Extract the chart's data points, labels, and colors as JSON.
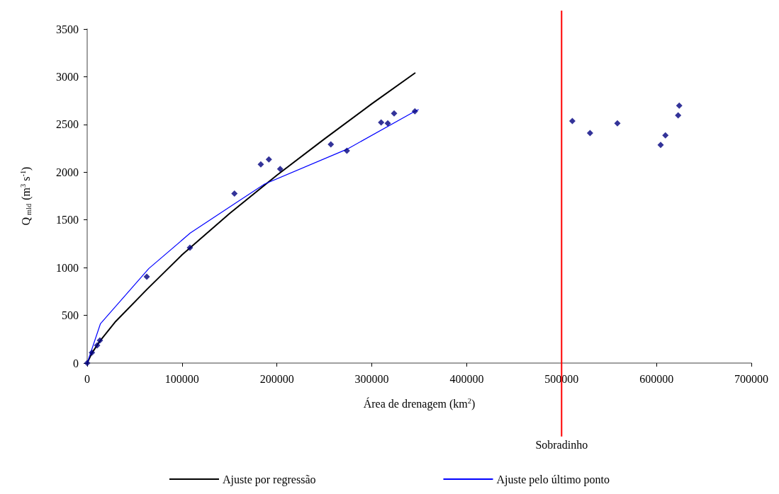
{
  "chart_data": {
    "type": "scatter",
    "xlabel": "Área de drenagem (km$^{2}$)",
    "ylabel": "Q$_{mld}$ (m$^{3}$ s$^{-1}$)",
    "xlim": [
      0,
      700000
    ],
    "xticks": [
      0,
      100000,
      200000,
      300000,
      400000,
      500000,
      600000,
      700000
    ],
    "ylim": [
      0,
      3500
    ],
    "yticks": [
      0,
      500,
      1000,
      1500,
      2000,
      2500,
      3000,
      3500
    ],
    "grid": false,
    "legend": "bottom",
    "marker": "diamond",
    "series": [
      {
        "color": "#000080",
        "x": [
          0,
          5000,
          10500,
          13400,
          62800,
          108300,
          155200,
          183000,
          191500,
          203400,
          256800,
          273700,
          309800,
          316800,
          323500,
          345400,
          511300,
          530000,
          558800,
          604400,
          609400,
          622800,
          624000
        ],
        "values": [
          0,
          110,
          185,
          237,
          905,
          1209,
          1776,
          2081,
          2133,
          2034,
          2291,
          2224,
          2521,
          2511,
          2615,
          2638,
          2536,
          2410,
          2511,
          2286,
          2385,
          2595,
          2697
        ]
      },
      {
        "type": "line",
        "name": "Ajuste por regressão",
        "color": "#000000",
        "marker": "none",
        "x": [
          0,
          5000,
          13000,
          30000,
          62800,
          100000,
          150000,
          200000,
          250000,
          300000,
          345400
        ],
        "values": [
          0,
          105,
          225,
          436,
          770,
          1135,
          1566,
          1969,
          2348,
          2717,
          3038
        ]
      },
      {
        "type": "line",
        "name": "Ajuste pelo último ponto",
        "color": "#0000ff",
        "marker": "none",
        "x": [
          0,
          14000,
          65000,
          108600,
          155200,
          187000,
          273700,
          345400,
          349000
        ],
        "values": [
          0,
          413,
          991,
          1362,
          1668,
          1876,
          2240,
          2638,
          2655
        ]
      }
    ],
    "ref_lines": [
      {
        "axis": "x",
        "value": 500000,
        "label": "Sobradinho",
        "color": "#ff0000"
      }
    ]
  }
}
